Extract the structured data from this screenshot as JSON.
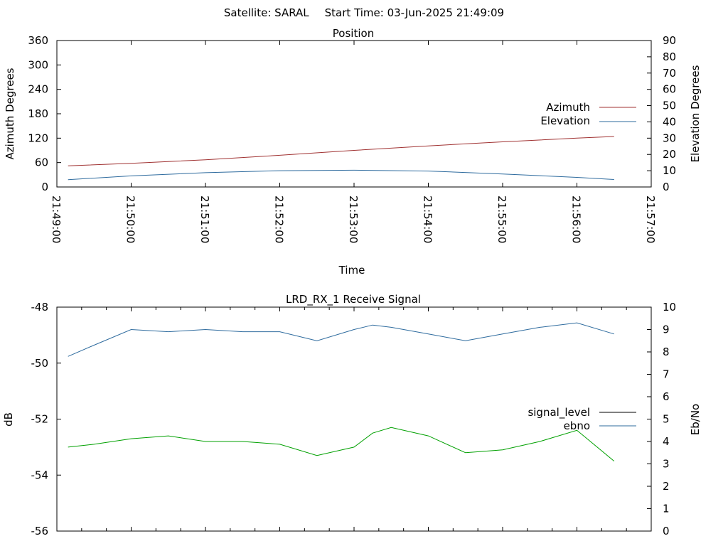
{
  "header": {
    "satellite": "Satellite: SARAL",
    "start_time": "Start Time: 03-Jun-2025 21:49:09"
  },
  "colors": {
    "azimuth": "#a03232",
    "elevation": "#2e6b9e",
    "signal_level": "#000000",
    "signal_trace": "#00a000",
    "ebno": "#2e6b9e"
  },
  "chart_data": [
    {
      "type": "line",
      "title": "Position",
      "xlabel": "Time",
      "ylabel": "Azimuth Degrees",
      "y2label": "Elevation Degrees",
      "xlim": [
        "21:49:00",
        "21:57:00"
      ],
      "ylim": [
        0,
        360
      ],
      "y2lim": [
        0,
        90
      ],
      "x_ticks": [
        "21:49:00",
        "21:50:00",
        "21:51:00",
        "21:52:00",
        "21:53:00",
        "21:54:00",
        "21:55:00",
        "21:56:00",
        "21:57:00"
      ],
      "y_ticks": [
        "0",
        "60",
        "120",
        "180",
        "240",
        "300",
        "360"
      ],
      "y2_ticks": [
        "0",
        "10",
        "20",
        "30",
        "40",
        "50",
        "60",
        "70",
        "80",
        "90"
      ],
      "legend": "right",
      "grid": false,
      "series": [
        {
          "name": "Azimuth",
          "axis": "y",
          "x": [
            "21:49:09",
            "21:50:00",
            "21:51:00",
            "21:52:00",
            "21:53:00",
            "21:54:00",
            "21:55:00",
            "21:56:00",
            "21:56:30"
          ],
          "values": [
            52,
            58,
            67,
            78,
            90,
            101,
            111,
            120,
            124
          ]
        },
        {
          "name": "Elevation",
          "axis": "y2",
          "x": [
            "21:49:09",
            "21:50:00",
            "21:51:00",
            "21:52:00",
            "21:53:00",
            "21:54:00",
            "21:55:00",
            "21:56:00",
            "21:56:30"
          ],
          "values": [
            4.5,
            6.8,
            8.8,
            10.0,
            10.3,
            9.8,
            8.0,
            5.9,
            4.6
          ]
        }
      ]
    },
    {
      "type": "line",
      "title": "LRD_RX_1 Receive Signal",
      "xlabel": "",
      "ylabel": "dB",
      "y2label": "Eb/No",
      "xlim": [
        "21:49:00",
        "21:57:00"
      ],
      "ylim": [
        -56,
        -48
      ],
      "y2lim": [
        0,
        10
      ],
      "y_ticks": [
        "-56",
        "-54",
        "-52",
        "-50",
        "-48"
      ],
      "y2_ticks": [
        "0",
        "1",
        "2",
        "3",
        "4",
        "5",
        "6",
        "7",
        "8",
        "9",
        "10"
      ],
      "legend": "right",
      "grid": false,
      "series": [
        {
          "name": "signal_level",
          "axis": "y",
          "x": [
            "21:49:09",
            "21:49:30",
            "21:50:00",
            "21:50:30",
            "21:51:00",
            "21:51:30",
            "21:52:00",
            "21:52:30",
            "21:53:00",
            "21:53:15",
            "21:53:30",
            "21:54:00",
            "21:54:30",
            "21:55:00",
            "21:55:30",
            "21:56:00",
            "21:56:30"
          ],
          "values": [
            -53.0,
            -52.9,
            -52.7,
            -52.6,
            -52.8,
            -52.8,
            -52.9,
            -53.3,
            -53.0,
            -52.5,
            -52.3,
            -52.6,
            -53.2,
            -53.1,
            -52.8,
            -52.4,
            -53.5
          ]
        },
        {
          "name": "ebno",
          "axis": "y2",
          "x": [
            "21:49:09",
            "21:49:30",
            "21:50:00",
            "21:50:30",
            "21:51:00",
            "21:51:30",
            "21:52:00",
            "21:52:30",
            "21:53:00",
            "21:53:15",
            "21:53:30",
            "21:54:00",
            "21:54:30",
            "21:55:00",
            "21:55:30",
            "21:56:00",
            "21:56:30"
          ],
          "values": [
            7.8,
            8.3,
            9.0,
            8.9,
            9.0,
            8.9,
            8.9,
            8.5,
            9.0,
            9.2,
            9.1,
            8.8,
            8.5,
            8.8,
            9.1,
            9.3,
            8.8
          ]
        }
      ]
    }
  ]
}
